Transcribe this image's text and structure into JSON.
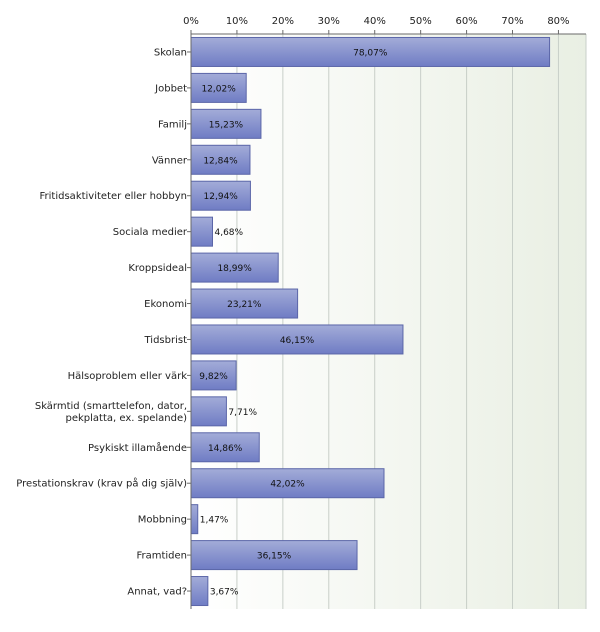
{
  "chart_data": {
    "type": "bar",
    "orientation": "horizontal",
    "title": "",
    "xlabel": "",
    "ylabel": "",
    "xlim": [
      0,
      86
    ],
    "ticks": [
      "0%",
      "10%",
      "20%",
      "30%",
      "40%",
      "50%",
      "60%",
      "70%",
      "80%"
    ],
    "tick_values": [
      0,
      10,
      20,
      30,
      40,
      50,
      60,
      70,
      80
    ],
    "grid": "vertical",
    "legend": "none",
    "categories": [
      "Skolan",
      "Jobbet",
      "Familj",
      "Vänner",
      "Fritidsaktiviteter eller hobbyn",
      "Sociala medier",
      "Kroppsideal",
      "Ekonomi",
      "Tidsbrist",
      "Hälsoproblem eller värk",
      [
        "Skärmtid (smarttelefon, dator,",
        "pekplatta, ex. spelande)"
      ],
      "Psykiskt illamående",
      "Prestationskrav (krav på dig själv)",
      "Mobbning",
      "Framtiden",
      "Annat, vad?"
    ],
    "values": [
      78.07,
      12.02,
      15.23,
      12.84,
      12.94,
      4.68,
      18.99,
      23.21,
      46.15,
      9.82,
      7.71,
      14.86,
      42.02,
      1.47,
      36.15,
      3.67
    ],
    "value_labels": [
      "78,07%",
      "12,02%",
      "15,23%",
      "12,84%",
      "12,94%",
      "4,68%",
      "18,99%",
      "23,21%",
      "46,15%",
      "9,82%",
      "7,71%",
      "14,86%",
      "42,02%",
      "1,47%",
      "36,15%",
      "3,67%"
    ],
    "colors": {
      "bar_fill_top": "#a3acd8",
      "bar_fill_bottom": "#6f7cc4",
      "bar_stroke": "#5b66a8",
      "plot_bg_left": "#ffffff",
      "plot_bg_right": "#e9efe3",
      "grid": "#c8cfc8",
      "axis": "#6a6a6a"
    }
  }
}
